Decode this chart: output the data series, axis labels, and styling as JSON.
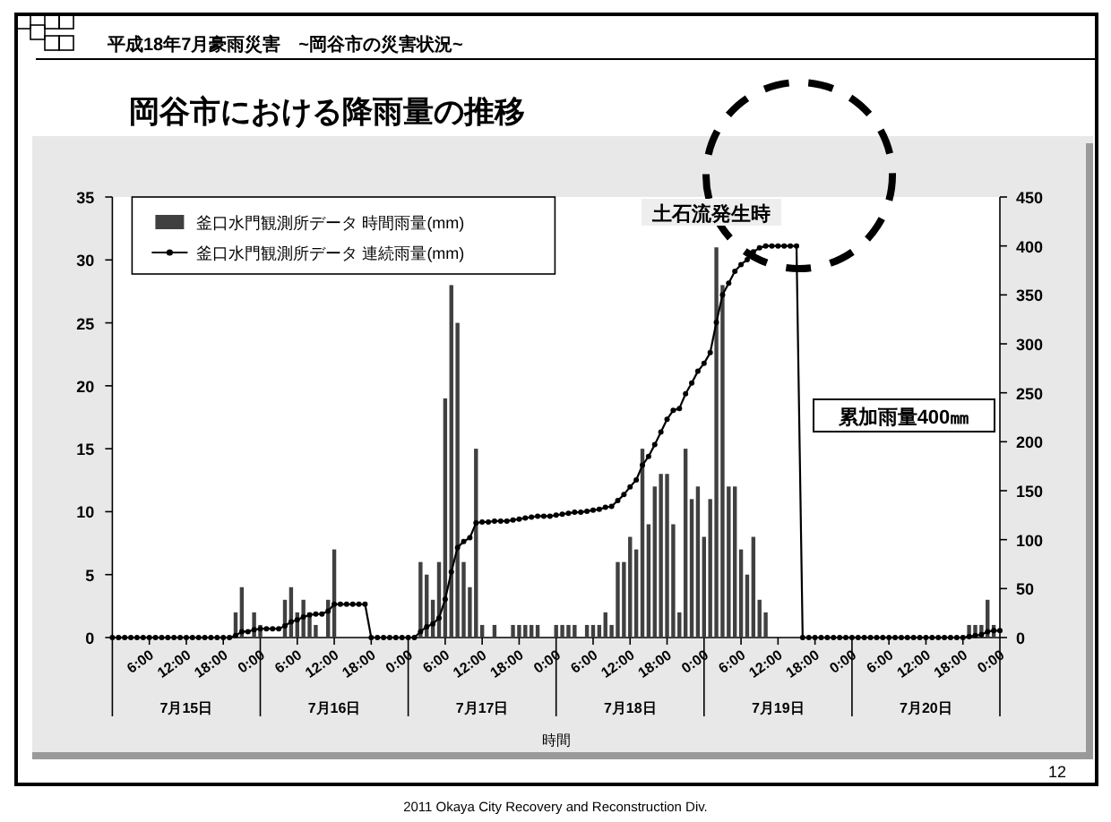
{
  "chart_data": {
    "type": "bar",
    "title": "岡谷市における降雨量の推移",
    "subtitle": "平成18年7月豪雨災害　~岡谷市の災害状況~",
    "xlabel": "時間",
    "annotations": [
      "土石流発生時",
      "累加雨量400㎜",
      "7月15日",
      "7月16日",
      "7月17日",
      "7月18日",
      "7月19日",
      "7月20日",
      "2011  Okaya City Recovery and Reconstruction Div.",
      "12"
    ],
    "xlim": [
      "--07-15T00:00",
      "--07-21T00:00"
    ],
    "xticks": [
      {
        "value": "--07-15T00:00",
        "label": null
      },
      {
        "value": "--07-15T06:00",
        "label": "6:00"
      },
      {
        "value": "--07-15T12:00",
        "label": "12:00"
      },
      {
        "value": "--07-15T18:00",
        "label": "18:00"
      },
      {
        "value": "--07-16T00:00",
        "label": "0:00"
      },
      {
        "value": "--07-16T06:00",
        "label": "6:00"
      },
      {
        "value": "--07-16T12:00",
        "label": "12:00"
      },
      {
        "value": "--07-16T18:00",
        "label": "18:00"
      },
      {
        "value": "--07-17T00:00",
        "label": "0:00"
      },
      {
        "value": "--07-17T06:00",
        "label": "6:00"
      },
      {
        "value": "--07-17T12:00",
        "label": "12:00"
      },
      {
        "value": "--07-17T18:00",
        "label": "18:00"
      },
      {
        "value": "--07-18T00:00",
        "label": "0:00"
      },
      {
        "value": "--07-18T06:00",
        "label": "6:00"
      },
      {
        "value": "--07-18T12:00",
        "label": "12:00"
      },
      {
        "value": "--07-18T18:00",
        "label": "18:00"
      },
      {
        "value": "--07-19T00:00",
        "label": "0:00"
      },
      {
        "value": "--07-19T06:00",
        "label": "6:00"
      },
      {
        "value": "--07-19T12:00",
        "label": "12:00"
      },
      {
        "value": "--07-19T18:00",
        "label": "18:00"
      },
      {
        "value": "--07-20T00:00",
        "label": "0:00"
      },
      {
        "value": "--07-20T06:00",
        "label": "6:00"
      },
      {
        "value": "--07-20T12:00",
        "label": "12:00"
      },
      {
        "value": "--07-20T18:00",
        "label": "18:00"
      },
      {
        "value": "--07-21T00:00",
        "label": "0:00"
      }
    ],
    "ylim": [
      0,
      35
    ],
    "yticks": [
      0,
      5,
      10,
      15,
      20,
      25,
      30,
      35
    ],
    "y2lim": [
      0,
      450
    ],
    "y2ticks": [
      0,
      50,
      100,
      150,
      200,
      250,
      300,
      350,
      400,
      450
    ],
    "legend": "top left",
    "series": [
      {
        "name": "釜口水門観測所データ 時間雨量(mm)",
        "color": "#404040",
        "x": [
          "--07-15T20:00",
          "--07-15T21:00",
          "--07-15T23:00",
          "--07-16T00:00",
          "--07-16T04:00",
          "--07-16T05:00",
          "--07-16T06:00",
          "--07-16T07:00",
          "--07-16T08:00",
          "--07-16T09:00",
          "--07-16T11:00",
          "--07-16T12:00",
          "--07-17T02:00",
          "--07-17T03:00",
          "--07-17T04:00",
          "--07-17T05:00",
          "--07-17T06:00",
          "--07-17T07:00",
          "--07-17T08:00",
          "--07-17T09:00",
          "--07-17T10:00",
          "--07-17T11:00",
          "--07-17T12:00",
          "--07-17T14:00",
          "--07-17T17:00",
          "--07-17T18:00",
          "--07-17T19:00",
          "--07-17T20:00",
          "--07-17T21:00",
          "--07-18T00:00",
          "--07-18T01:00",
          "--07-18T02:00",
          "--07-18T03:00",
          "--07-18T05:00",
          "--07-18T06:00",
          "--07-18T07:00",
          "--07-18T08:00",
          "--07-18T09:00",
          "--07-18T10:00",
          "--07-18T11:00",
          "--07-18T12:00",
          "--07-18T13:00",
          "--07-18T14:00",
          "--07-18T15:00",
          "--07-18T16:00",
          "--07-18T17:00",
          "--07-18T18:00",
          "--07-18T19:00",
          "--07-18T20:00",
          "--07-18T21:00",
          "--07-18T22:00",
          "--07-18T23:00",
          "--07-19T00:00",
          "--07-19T01:00",
          "--07-19T02:00",
          "--07-19T03:00",
          "--07-19T04:00",
          "--07-19T05:00",
          "--07-19T06:00",
          "--07-19T07:00",
          "--07-19T08:00",
          "--07-19T09:00",
          "--07-19T10:00",
          "--07-20T19:00",
          "--07-20T20:00",
          "--07-20T21:00",
          "--07-20T22:00",
          "--07-20T23:00"
        ],
        "values": [
          2,
          4,
          2,
          1,
          3,
          4,
          2,
          3,
          2,
          1,
          3,
          7,
          6,
          5,
          3,
          6,
          19,
          28,
          25,
          6,
          4,
          15,
          1,
          1,
          1,
          1,
          1,
          1,
          1,
          1,
          1,
          1,
          1,
          1,
          1,
          1,
          2,
          1,
          6,
          6,
          8,
          7,
          15,
          9,
          12,
          13,
          13,
          9,
          2,
          15,
          11,
          12,
          8,
          11,
          31,
          28,
          12,
          12,
          7,
          5,
          8,
          3,
          2,
          1,
          1,
          1,
          3,
          1
        ]
      },
      {
        "name": "釜口水門観測所データ 連続雨量(mm)",
        "type": "line",
        "axis": "y2",
        "color": "#000000",
        "marker": "circle",
        "x": [
          "--07-15T00:00",
          "--07-15T01:00",
          "--07-15T02:00",
          "--07-15T03:00",
          "--07-15T04:00",
          "--07-15T05:00",
          "--07-15T06:00",
          "--07-15T07:00",
          "--07-15T08:00",
          "--07-15T09:00",
          "--07-15T10:00",
          "--07-15T11:00",
          "--07-15T12:00",
          "--07-15T13:00",
          "--07-15T14:00",
          "--07-15T15:00",
          "--07-15T16:00",
          "--07-15T17:00",
          "--07-15T18:00",
          "--07-15T19:00",
          "--07-15T20:00",
          "--07-15T21:00",
          "--07-15T22:00",
          "--07-15T23:00",
          "--07-16T00:00",
          "--07-16T01:00",
          "--07-16T02:00",
          "--07-16T03:00",
          "--07-16T04:00",
          "--07-16T05:00",
          "--07-16T06:00",
          "--07-16T07:00",
          "--07-16T08:00",
          "--07-16T09:00",
          "--07-16T10:00",
          "--07-16T11:00",
          "--07-16T12:00",
          "--07-16T13:00",
          "--07-16T14:00",
          "--07-16T15:00",
          "--07-16T16:00",
          "--07-16T17:00",
          "--07-16T18:00",
          "--07-16T19:00",
          "--07-16T20:00",
          "--07-16T21:00",
          "--07-16T22:00",
          "--07-16T23:00",
          "--07-17T00:00",
          "--07-17T01:00",
          "--07-17T02:00",
          "--07-17T03:00",
          "--07-17T04:00",
          "--07-17T05:00",
          "--07-17T06:00",
          "--07-17T07:00",
          "--07-17T08:00",
          "--07-17T09:00",
          "--07-17T10:00",
          "--07-17T11:00",
          "--07-17T12:00",
          "--07-17T13:00",
          "--07-17T14:00",
          "--07-17T15:00",
          "--07-17T16:00",
          "--07-17T17:00",
          "--07-17T18:00",
          "--07-17T19:00",
          "--07-17T20:00",
          "--07-17T21:00",
          "--07-17T22:00",
          "--07-17T23:00",
          "--07-18T00:00",
          "--07-18T01:00",
          "--07-18T02:00",
          "--07-18T03:00",
          "--07-18T04:00",
          "--07-18T05:00",
          "--07-18T06:00",
          "--07-18T07:00",
          "--07-18T08:00",
          "--07-18T09:00",
          "--07-18T10:00",
          "--07-18T11:00",
          "--07-18T12:00",
          "--07-18T13:00",
          "--07-18T14:00",
          "--07-18T15:00",
          "--07-18T16:00",
          "--07-18T17:00",
          "--07-18T18:00",
          "--07-18T19:00",
          "--07-18T20:00",
          "--07-18T21:00",
          "--07-18T22:00",
          "--07-18T23:00",
          "--07-19T00:00",
          "--07-19T01:00",
          "--07-19T02:00",
          "--07-19T03:00",
          "--07-19T04:00",
          "--07-19T05:00",
          "--07-19T06:00",
          "--07-19T07:00",
          "--07-19T08:00",
          "--07-19T09:00",
          "--07-19T10:00",
          "--07-19T11:00",
          "--07-19T12:00",
          "--07-19T13:00",
          "--07-19T14:00",
          "--07-19T15:00",
          "--07-19T16:00",
          "--07-19T17:00",
          "--07-19T18:00",
          "--07-19T19:00",
          "--07-19T20:00",
          "--07-19T21:00",
          "--07-19T22:00",
          "--07-19T23:00",
          "--07-20T00:00",
          "--07-20T01:00",
          "--07-20T02:00",
          "--07-20T03:00",
          "--07-20T04:00",
          "--07-20T05:00",
          "--07-20T06:00",
          "--07-20T07:00",
          "--07-20T08:00",
          "--07-20T09:00",
          "--07-20T10:00",
          "--07-20T11:00",
          "--07-20T12:00",
          "--07-20T13:00",
          "--07-20T14:00",
          "--07-20T15:00",
          "--07-20T16:00",
          "--07-20T17:00",
          "--07-20T18:00",
          "--07-20T19:00",
          "--07-20T20:00",
          "--07-20T21:00",
          "--07-20T22:00",
          "--07-20T23:00",
          "--07-21T00:00"
        ],
        "values": [
          0,
          0,
          0,
          0,
          0,
          0,
          0,
          0,
          0,
          0,
          0,
          0,
          0,
          0,
          0,
          0,
          0,
          0,
          0,
          0,
          2,
          6,
          6,
          8,
          9,
          9,
          9,
          9,
          12,
          16,
          18,
          21,
          23,
          24,
          24,
          27,
          34,
          34,
          34,
          34,
          34,
          34,
          0,
          0,
          0,
          0,
          0,
          0,
          0,
          0,
          6,
          11,
          14,
          20,
          39,
          67,
          92,
          98,
          102,
          117,
          118,
          118,
          119,
          119,
          119,
          120,
          121,
          122,
          123,
          124,
          124,
          124,
          125,
          126,
          127,
          128,
          128,
          129,
          130,
          131,
          133,
          134,
          140,
          146,
          154,
          161,
          176,
          185,
          197,
          210,
          223,
          232,
          234,
          249,
          260,
          272,
          280,
          291,
          322,
          350,
          362,
          374,
          381,
          386,
          394,
          398,
          400,
          400,
          400,
          400,
          400,
          400,
          0,
          0,
          0,
          0,
          0,
          0,
          0,
          0,
          0,
          0,
          0,
          0,
          0,
          0,
          0,
          0,
          0,
          0,
          0,
          0,
          0,
          0,
          0,
          0,
          0,
          0,
          0,
          1,
          2,
          3,
          6,
          7,
          7
        ]
      }
    ]
  }
}
